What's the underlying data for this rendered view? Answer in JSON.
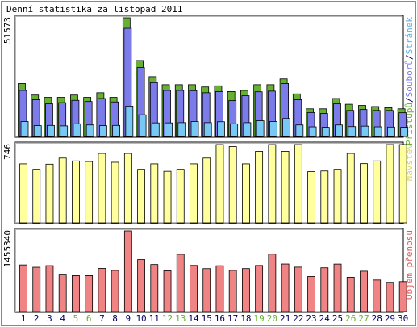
{
  "title": "Denní statistika za listopad 2011",
  "days": [
    "1",
    "2",
    "3",
    "4",
    "5",
    "6",
    "7",
    "8",
    "9",
    "10",
    "11",
    "12",
    "13",
    "14",
    "15",
    "16",
    "17",
    "18",
    "19",
    "20",
    "21",
    "22",
    "23",
    "24",
    "25",
    "26",
    "27",
    "28",
    "29",
    "30"
  ],
  "weekend_days": [
    "5",
    "6",
    "12",
    "13",
    "19",
    "20",
    "26",
    "27"
  ],
  "colors": {
    "green": "#66b132",
    "blue": "#7b7bea",
    "cyan": "#78c8f5",
    "yellow": "#ffff9e",
    "red": "#f08484",
    "panel_bg": "#ffffff",
    "weekend_label": "#66b132",
    "weekday_label": "#000066",
    "legend_pristupu": "#66b132",
    "legend_souboru": "#7b7bea",
    "legend_stranek": "#5aaee0",
    "legend_navstev": "#d6d65a",
    "legend_objem": "#e05a5a"
  },
  "chart_data": [
    {
      "type": "bar",
      "name": "top-panel",
      "max_label": "51573",
      "ylim": [
        0,
        51573
      ],
      "legend": [
        {
          "text": "Přístupů",
          "color_key": "legend_pristupu"
        },
        {
          "text": "/",
          "color_key": "weekday_label"
        },
        {
          "text": "Souborů",
          "color_key": "legend_souboru"
        },
        {
          "text": "/",
          "color_key": "weekday_label"
        },
        {
          "text": "Stránek",
          "color_key": "legend_stranek"
        }
      ],
      "series": [
        {
          "name": "Přístupů",
          "values": [
            23000,
            18000,
            17000,
            17000,
            18000,
            17000,
            19000,
            17000,
            51573,
            33000,
            26000,
            22500,
            22500,
            22500,
            21500,
            22000,
            19500,
            20000,
            22500,
            22500,
            25000,
            18500,
            12000,
            12000,
            16500,
            14000,
            13500,
            13000,
            12500,
            12000
          ]
        },
        {
          "name": "Souborů",
          "values": [
            20000,
            16000,
            14200,
            14700,
            15700,
            15200,
            16500,
            15000,
            47000,
            30000,
            23400,
            20000,
            20000,
            19900,
            19000,
            19500,
            15600,
            17700,
            19400,
            19700,
            23000,
            16000,
            10400,
            10000,
            14200,
            11300,
            11700,
            11300,
            11300,
            10300
          ]
        },
        {
          "name": "Stránek",
          "values": [
            6500,
            4700,
            4800,
            4600,
            5500,
            5000,
            4700,
            4800,
            13200,
            9400,
            5900,
            5900,
            6000,
            6500,
            6000,
            6400,
            5500,
            6000,
            6800,
            6500,
            7800,
            5000,
            4200,
            4000,
            5000,
            4300,
            4500,
            4200,
            4100,
            4000
          ]
        }
      ]
    },
    {
      "type": "bar",
      "name": "middle-panel",
      "max_label": "746",
      "ylim": [
        0,
        746
      ],
      "legend": [
        {
          "text": "Návštěv",
          "color_key": "legend_navstev"
        }
      ],
      "series": [
        {
          "name": "Návštěv",
          "values": [
            562,
            510,
            559,
            617,
            590,
            584,
            661,
            577,
            661,
            510,
            562,
            491,
            510,
            562,
            617,
            746,
            727,
            562,
            681,
            746,
            681,
            746,
            488,
            494,
            510,
            661,
            564,
            590,
            746,
            746
          ]
        }
      ]
    },
    {
      "type": "bar",
      "name": "bottom-panel",
      "max_label": "1455340",
      "ylim": [
        0,
        1455340
      ],
      "legend": [
        {
          "text": "Objem přenosu",
          "color_key": "legend_objem"
        }
      ],
      "series": [
        {
          "name": "Objem přenosu",
          "values": [
            842000,
            800000,
            829000,
            675000,
            649000,
            649000,
            779000,
            743000,
            1455340,
            938000,
            849000,
            736000,
            1034000,
            833000,
            775000,
            827000,
            743000,
            776000,
            832000,
            1037000,
            858000,
            802000,
            634000,
            790000,
            857000,
            620000,
            729000,
            570000,
            528000,
            541000
          ]
        }
      ]
    }
  ]
}
